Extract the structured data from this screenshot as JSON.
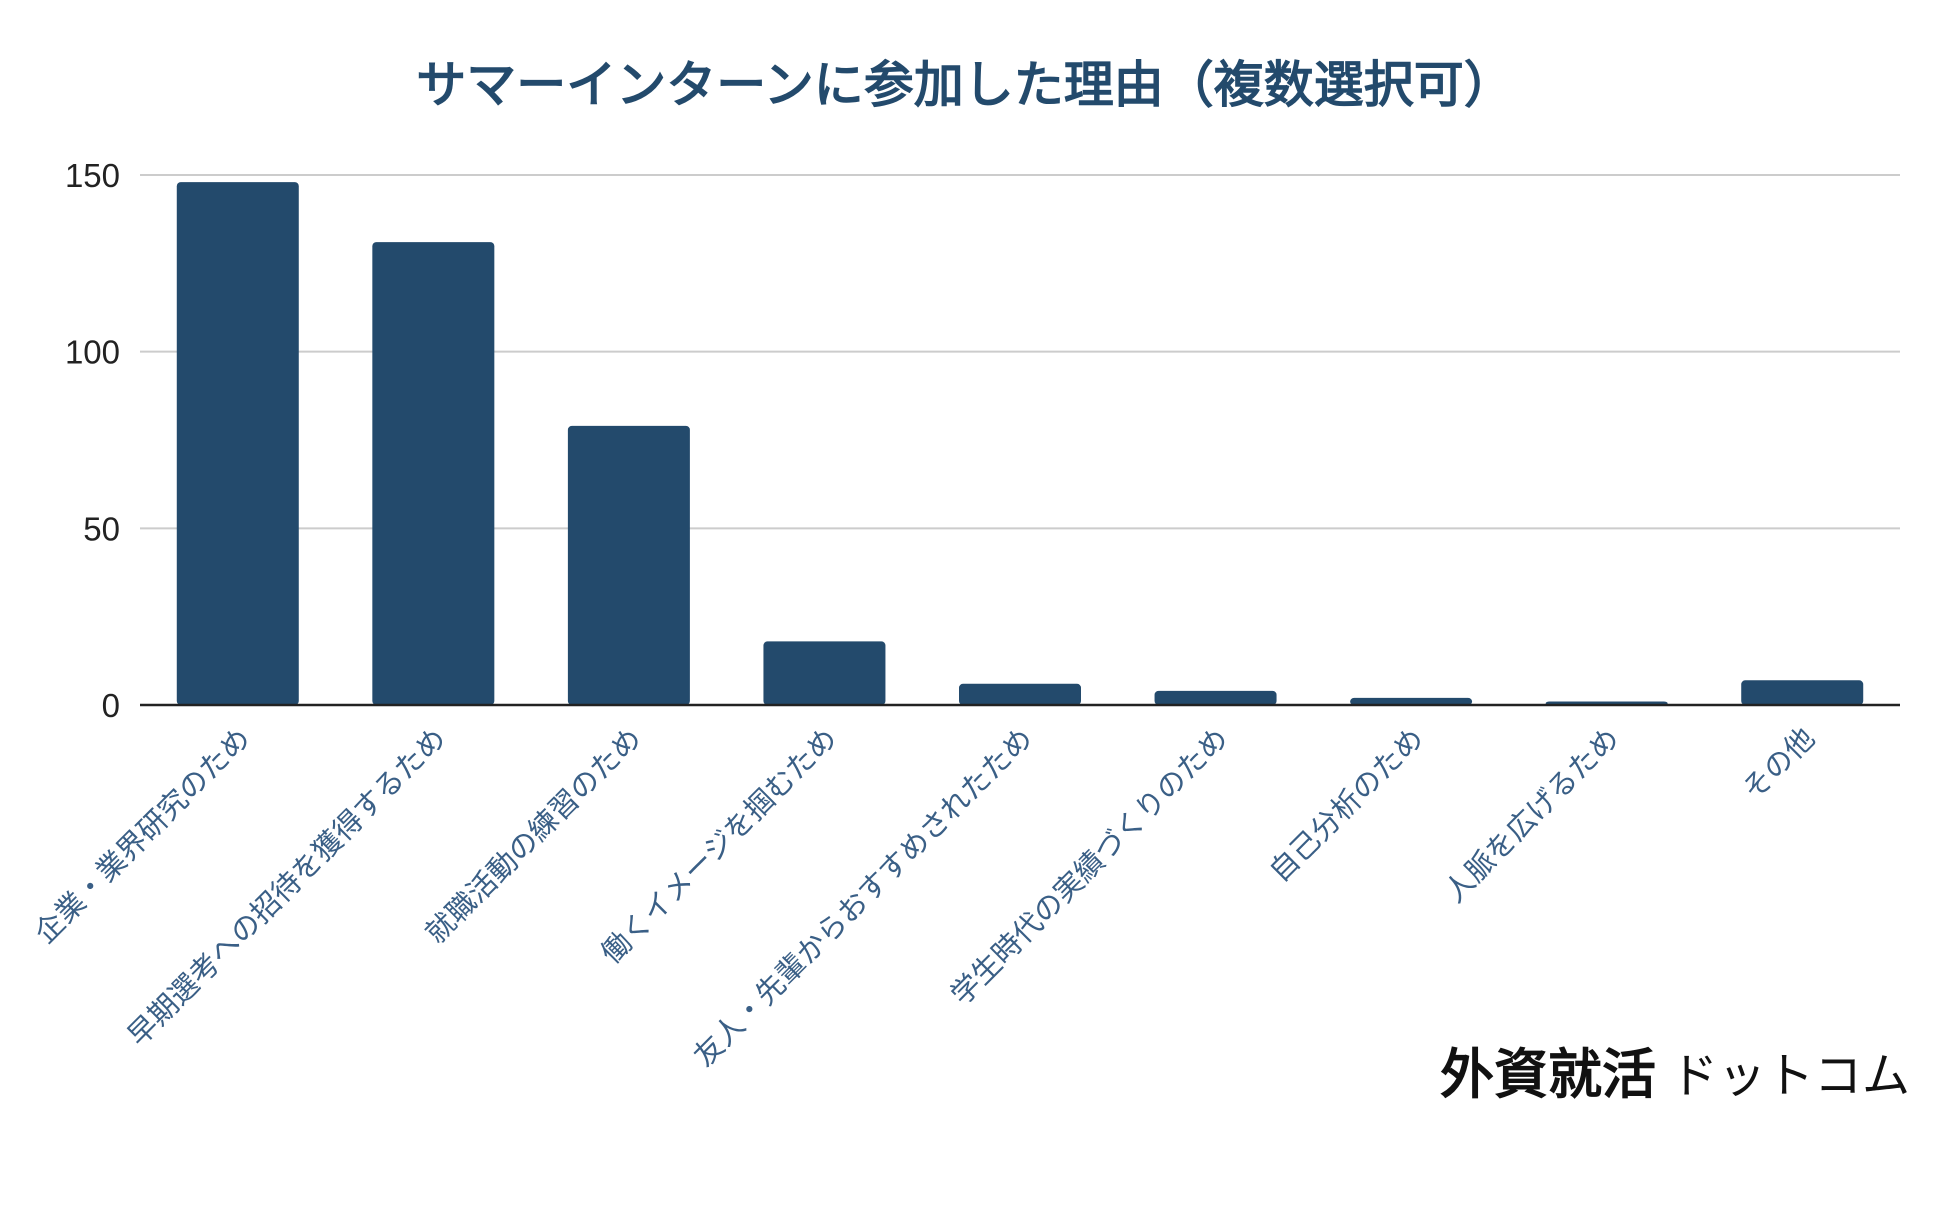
{
  "chart_data": {
    "type": "bar",
    "title": "サマーインターンに参加した理由（複数選択可）",
    "xlabel": "",
    "ylabel": "",
    "categories": [
      "企業・業界研究のため",
      "早期選考への招待を獲得するため",
      "就職活動の練習のため",
      "働くイメージを掴むため",
      "友人・先輩からおすすめされたため",
      "学生時代の実績づくりのため",
      "自己分析のため",
      "人脈を広げるため",
      "その他"
    ],
    "values": [
      148,
      131,
      79,
      18,
      6,
      4,
      2,
      1,
      7
    ],
    "ylim": [
      0,
      150
    ],
    "yticks": [
      0,
      50,
      100,
      150
    ],
    "grid": true,
    "legend": "none"
  },
  "colors": {
    "bar": "#234a6c",
    "title": "#234a6c",
    "category_label": "#3a5f86",
    "gridline": "#cccccc",
    "axis": "#222222"
  },
  "watermark": {
    "main": "外資就活",
    "sub": "ドットコム"
  }
}
